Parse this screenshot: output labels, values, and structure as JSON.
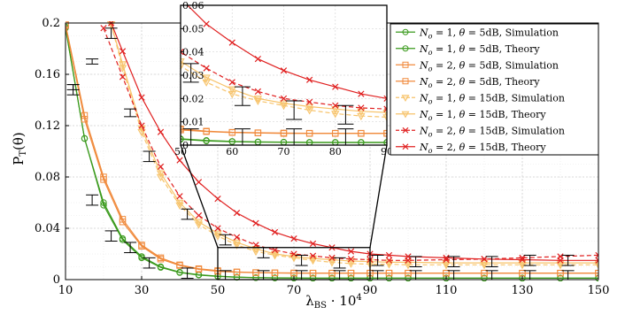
{
  "chart_data": {
    "type": "line",
    "xlabel": "λ_BS · 10^4",
    "ylabel": "P_T(θ)",
    "xlim": [
      10,
      150
    ],
    "ylim": [
      0,
      0.2
    ],
    "xticks": [
      "10",
      "30",
      "50",
      "70",
      "90",
      "110",
      "130",
      "150"
    ],
    "yticks": [
      "0",
      "0.04",
      "0.08",
      "0.12",
      "0.16",
      "0.2"
    ],
    "grid": true,
    "legend_position": "top-right",
    "colors": {
      "green": "#3a9a1c",
      "orange": "#f08a3c",
      "yellow": "#f7c36a",
      "red": "#e02020",
      "errorbar": "#000000",
      "zoom_box": "#000000"
    },
    "series": [
      {
        "name": "N_o = 1, θ = 5dB, Simulation",
        "legend_html": "N_o = 1, θ = 5dB, Simulation",
        "color": "#3a9a1c",
        "marker": "circle",
        "dash": "solid",
        "x": [
          10,
          15,
          20,
          25,
          30,
          35,
          40,
          45,
          50,
          55,
          60,
          65,
          70,
          75,
          80,
          85,
          90,
          95,
          100,
          110,
          120,
          130,
          140,
          150
        ],
        "y": [
          0.196,
          0.11,
          0.058,
          0.031,
          0.017,
          0.0095,
          0.0055,
          0.0035,
          0.0025,
          0.0018,
          0.0015,
          0.0013,
          0.0012,
          0.0011,
          0.0011,
          0.0011,
          0.0011,
          0.0011,
          0.0011,
          0.0011,
          0.0011,
          0.0011,
          0.0011,
          0.0011
        ]
      },
      {
        "name": "N_o = 1, θ = 5dB, Theory",
        "color": "#3a9a1c",
        "marker": "circle",
        "dash": "solid",
        "x": [
          10,
          15,
          20,
          25,
          30,
          35,
          40,
          45,
          50,
          55,
          60,
          65,
          70,
          75,
          80,
          85,
          90,
          95,
          100,
          110,
          120,
          130,
          140,
          150
        ],
        "y": [
          0.197,
          0.11,
          0.06,
          0.032,
          0.018,
          0.01,
          0.0058,
          0.0038,
          0.0027,
          0.002,
          0.0016,
          0.0014,
          0.0013,
          0.0012,
          0.0012,
          0.0012,
          0.0012,
          0.0012,
          0.0012,
          0.0012,
          0.0012,
          0.0012,
          0.0012,
          0.0012
        ]
      },
      {
        "name": "N_o = 2, θ = 5dB, Simulation",
        "color": "#f08a3c",
        "marker": "square",
        "dash": "solid",
        "x": [
          10,
          15,
          20,
          25,
          30,
          35,
          40,
          45,
          50,
          55,
          60,
          65,
          70,
          75,
          80,
          85,
          90,
          95,
          100,
          110,
          120,
          130,
          140,
          150
        ],
        "y": [
          0.198,
          0.125,
          0.078,
          0.045,
          0.026,
          0.016,
          0.011,
          0.008,
          0.0065,
          0.0058,
          0.0054,
          0.0052,
          0.005,
          0.005,
          0.005,
          0.005,
          0.005,
          0.005,
          0.005,
          0.005,
          0.005,
          0.005,
          0.005,
          0.005
        ]
      },
      {
        "name": "N_o = 2, θ = 5dB, Theory",
        "color": "#f08a3c",
        "marker": "square",
        "dash": "solid",
        "x": [
          10,
          15,
          20,
          25,
          30,
          35,
          40,
          45,
          50,
          55,
          60,
          65,
          70,
          75,
          80,
          85,
          90,
          95,
          100,
          110,
          120,
          130,
          140,
          150
        ],
        "y": [
          0.199,
          0.128,
          0.08,
          0.047,
          0.027,
          0.017,
          0.0115,
          0.0085,
          0.007,
          0.006,
          0.0055,
          0.0053,
          0.0052,
          0.0051,
          0.0051,
          0.0051,
          0.0051,
          0.0051,
          0.0051,
          0.0051,
          0.0051,
          0.0051,
          0.0051,
          0.0051
        ]
      },
      {
        "name": "N_o = 1, θ = 15dB, Simulation",
        "color": "#f7c36a",
        "marker": "triangle-down",
        "dash": "dashed",
        "x": [
          22,
          25,
          30,
          35,
          40,
          45,
          50,
          55,
          60,
          65,
          70,
          75,
          80,
          85,
          90,
          95,
          100,
          110,
          120,
          130,
          140,
          150
        ],
        "y": [
          0.199,
          0.165,
          0.115,
          0.08,
          0.058,
          0.043,
          0.034,
          0.027,
          0.022,
          0.019,
          0.017,
          0.015,
          0.0135,
          0.0125,
          0.012,
          0.012,
          0.0115,
          0.0115,
          0.0115,
          0.0115,
          0.0115,
          0.0115
        ]
      },
      {
        "name": "N_o = 1, θ = 15dB, Theory",
        "color": "#f7c36a",
        "marker": "triangle-down",
        "dash": "solid",
        "x": [
          22,
          25,
          30,
          35,
          40,
          45,
          50,
          55,
          60,
          65,
          70,
          75,
          80,
          85,
          90,
          95,
          100,
          110,
          120,
          130,
          140,
          150
        ],
        "y": [
          0.199,
          0.168,
          0.118,
          0.083,
          0.06,
          0.045,
          0.036,
          0.029,
          0.024,
          0.02,
          0.018,
          0.0165,
          0.0155,
          0.0145,
          0.014,
          0.0135,
          0.0135,
          0.013,
          0.013,
          0.013,
          0.013,
          0.013
        ]
      },
      {
        "name": "N_o = 2, θ = 15dB, Simulation",
        "color": "#e02020",
        "marker": "x",
        "dash": "dashed",
        "x": [
          20,
          25,
          30,
          35,
          40,
          45,
          50,
          55,
          60,
          65,
          70,
          75,
          80,
          85,
          90,
          95,
          100,
          110,
          120,
          130,
          140,
          150
        ],
        "y": [
          0.196,
          0.158,
          0.12,
          0.088,
          0.065,
          0.05,
          0.04,
          0.033,
          0.027,
          0.023,
          0.02,
          0.0185,
          0.017,
          0.016,
          0.0155,
          0.015,
          0.015,
          0.0155,
          0.016,
          0.017,
          0.018,
          0.019
        ]
      },
      {
        "name": "N_o = 2, θ = 15dB, Theory",
        "color": "#e02020",
        "marker": "x",
        "dash": "solid",
        "x": [
          22,
          25,
          30,
          35,
          40,
          45,
          50,
          55,
          60,
          65,
          70,
          75,
          80,
          85,
          90,
          95,
          100,
          110,
          120,
          130,
          140,
          150
        ],
        "y": [
          0.2,
          0.178,
          0.142,
          0.115,
          0.093,
          0.076,
          0.063,
          0.052,
          0.044,
          0.037,
          0.032,
          0.028,
          0.025,
          0.022,
          0.02,
          0.019,
          0.018,
          0.017,
          0.016,
          0.0155,
          0.015,
          0.015
        ]
      }
    ],
    "errorbars": {
      "x": [
        12,
        17,
        22,
        27,
        32,
        42,
        52,
        62,
        72,
        82,
        92,
        102,
        112,
        122,
        132,
        142
      ],
      "groups": [
        {
          "y": [
            0.148,
            0.062,
            0.034,
            0.025,
            0.013,
            0.005,
            0.003,
            0.003,
            0.003,
            0.003,
            0.003,
            0.003,
            0.003,
            0.003,
            0.003,
            0.003
          ],
          "err": [
            0.004,
            0.004,
            0.004,
            0.004,
            0.004,
            0.004,
            0.004,
            0.004,
            0.004,
            0.004,
            0.004,
            0.004,
            0.004,
            0.004,
            0.004,
            0.004
          ]
        },
        {
          "y": [
            0.15,
            0.17,
            0.192,
            0.13,
            0.096,
            0.051,
            0.031,
            0.021,
            0.015,
            0.013,
            0.015,
            0.014,
            0.014,
            0.014,
            0.015,
            0.015
          ],
          "err": [
            0.002,
            0.002,
            0.004,
            0.003,
            0.004,
            0.004,
            0.004,
            0.004,
            0.004,
            0.004,
            0.004,
            0.004,
            0.004,
            0.004,
            0.004,
            0.004
          ]
        }
      ]
    },
    "inset": {
      "xlim": [
        50,
        90
      ],
      "ylim": [
        0,
        0.06
      ],
      "xticks": [
        "50",
        "60",
        "70",
        "80",
        "90"
      ],
      "yticks": [
        "0",
        "0.01",
        "0.02",
        "0.03",
        "0.04",
        "0.05",
        "0.06"
      ],
      "zoom_region": {
        "x": [
          50,
          90
        ],
        "y": [
          0,
          0.025
        ]
      }
    }
  }
}
